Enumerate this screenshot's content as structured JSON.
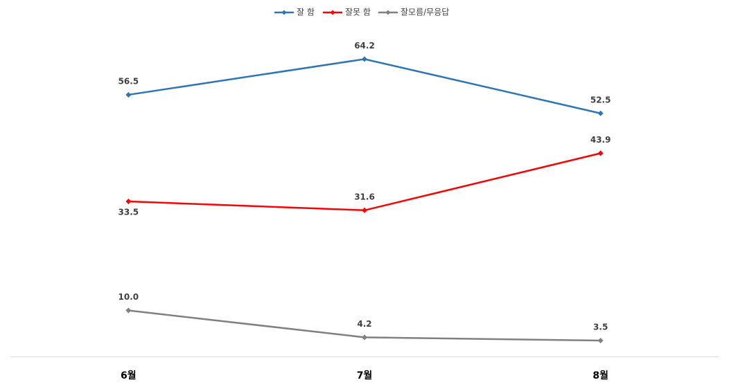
{
  "chart_data": {
    "type": "line",
    "categories": [
      "6월",
      "7월",
      "8월"
    ],
    "series": [
      {
        "name": "잘 함",
        "color": "#2e75b6",
        "values": [
          56.5,
          64.2,
          52.5
        ],
        "value_labels": [
          "56.5",
          "64.2",
          "52.5"
        ]
      },
      {
        "name": "잘못 함",
        "color": "#ff0000",
        "values": [
          33.5,
          31.6,
          43.9
        ],
        "value_labels": [
          "33.5",
          "31.6",
          "43.9"
        ]
      },
      {
        "name": "잘모름/무응답",
        "color": "#808080",
        "values": [
          10.0,
          4.2,
          3.5
        ],
        "value_labels": [
          "10.0",
          "4.2",
          "3.5"
        ]
      }
    ],
    "ylim": [
      0,
      70
    ],
    "legend": "top"
  }
}
